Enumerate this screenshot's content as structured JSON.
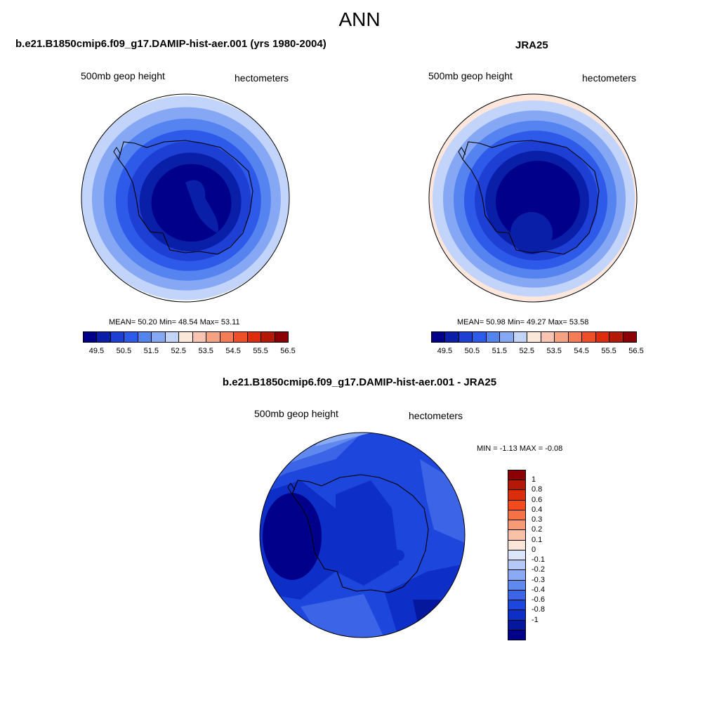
{
  "page": {
    "title": "ANN"
  },
  "panels": {
    "model": {
      "title": "b.e21.B1850cmip6.f09_g17.DAMIP-hist-aer.001 (yrs 1980-2004)",
      "variable": "500mb geop height",
      "units": "hectometers",
      "stats": "MEAN=  50.20  Min=  48.54  Max=  53.11"
    },
    "obs": {
      "title": "JRA25",
      "variable": "500mb geop height",
      "units": "hectometers",
      "stats": "MEAN=  50.98  Min=  49.27  Max=  53.58"
    },
    "diff": {
      "title": "b.e21.B1850cmip6.f09_g17.DAMIP-hist-aer.001 - JRA25",
      "variable": "500mb geop height",
      "units": "hectometers",
      "stats": "MIN =  -1.13 MAX =  -0.08"
    }
  },
  "colorbars": {
    "abs": {
      "colors": [
        "#00008b",
        "#0a1fa8",
        "#1d3fd4",
        "#2d5ae8",
        "#5583f0",
        "#86a8f4",
        "#c2d4fa",
        "#fde6dc",
        "#f9c4b1",
        "#f5a283",
        "#f47c56",
        "#ef4f26",
        "#dd2d0c",
        "#b31906",
        "#8b0000"
      ],
      "ticks": [
        "49.5",
        "50.5",
        "51.5",
        "52.5",
        "53.5",
        "54.5",
        "55.5",
        "56.5"
      ]
    },
    "diff": {
      "colors_top_down": [
        "#8b0000",
        "#b31906",
        "#d92d0c",
        "#f24a1d",
        "#f57146",
        "#f79a76",
        "#f9c2a6",
        "#fde4d8",
        "#dce6fb",
        "#b4c9f6",
        "#8aabf3",
        "#5f89ee",
        "#3b64e6",
        "#1d46dd",
        "#0e2ec8",
        "#05179d",
        "#00008b"
      ],
      "ticks": [
        "1",
        "0.8",
        "0.6",
        "0.4",
        "0.3",
        "0.2",
        "0.1",
        "0",
        "-0.1",
        "-0.2",
        "-0.3",
        "-0.4",
        "-0.6",
        "-0.8",
        "-1"
      ]
    }
  },
  "colors": {
    "model_rings": [
      "#c2d4fa",
      "#86a8f4",
      "#5583f0",
      "#2d5ae8",
      "#1d3fd4",
      "#0a1fa8",
      "#00008b"
    ],
    "obs_rings": [
      "#fde6dc",
      "#c2d4fa",
      "#86a8f4",
      "#5583f0",
      "#2d5ae8",
      "#1d3fd4",
      "#0a1fa8",
      "#00008b"
    ],
    "diff_base": "#1d46dd",
    "diff_mid": "#0e2ec8",
    "diff_dark": "#05179d",
    "diff_darkest": "#00008b",
    "diff_light": "#3b64e6",
    "diff_lighter": "#5f89ee",
    "diff_pale": "#8aabf3"
  }
}
